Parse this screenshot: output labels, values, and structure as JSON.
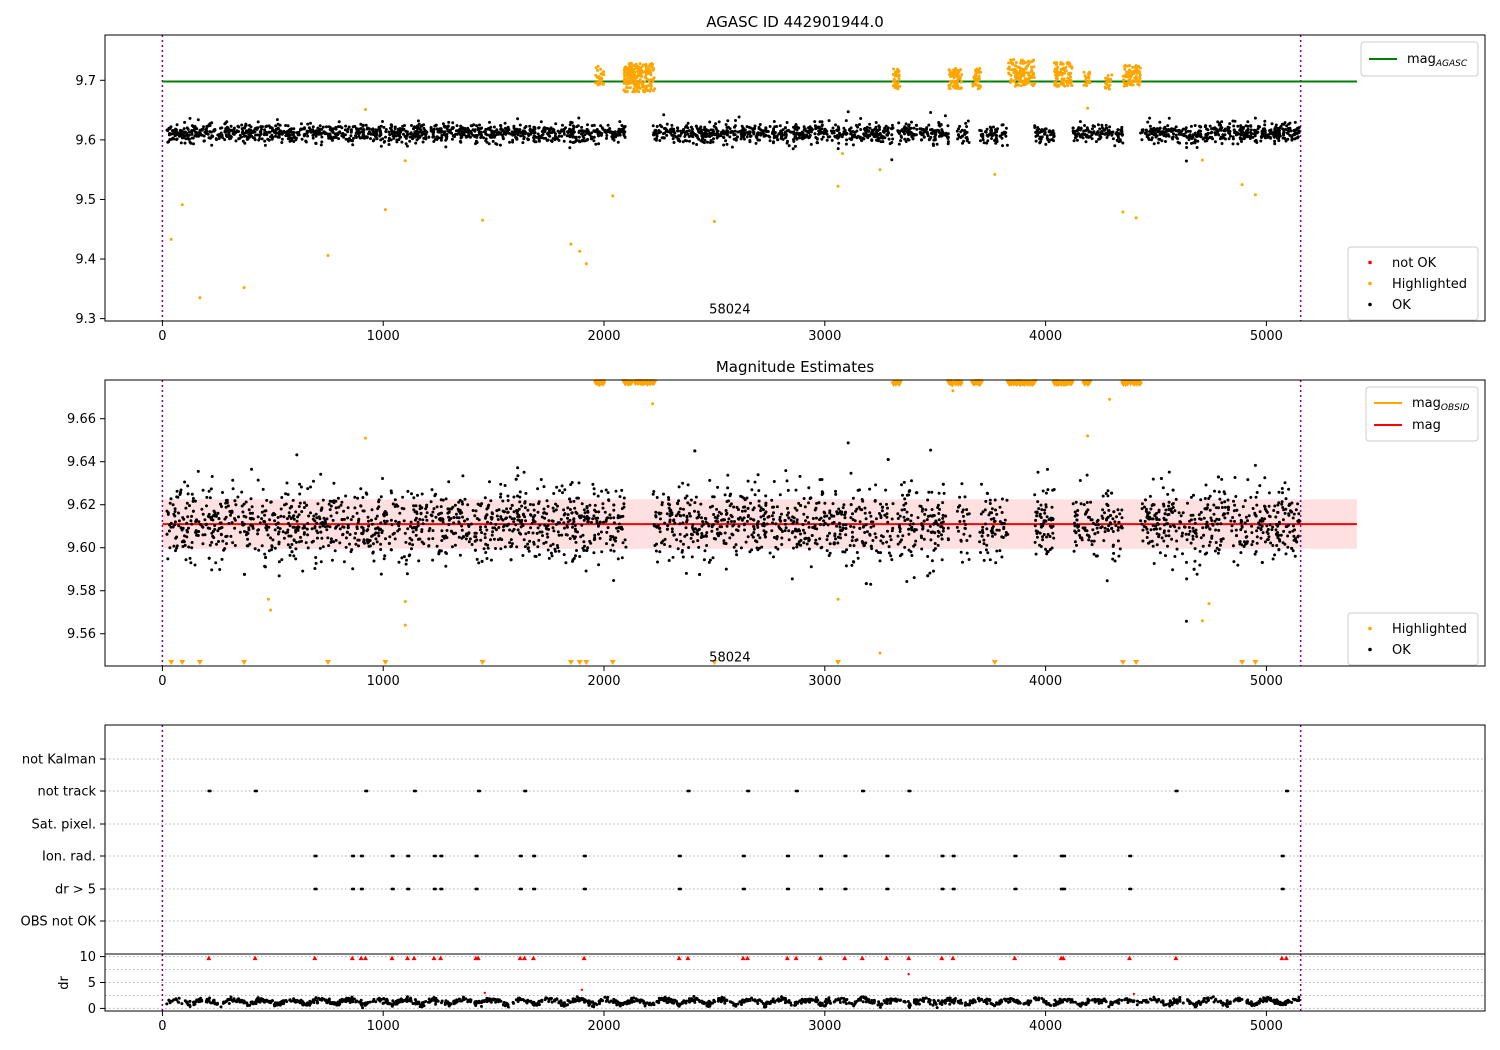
{
  "chart_data": [
    {
      "type": "scatter",
      "title": "AGASC ID 442901944.0",
      "xlim": [
        -260,
        5990
      ],
      "ylim": [
        9.296,
        9.776
      ],
      "x_ticks": [
        0,
        1000,
        2000,
        3000,
        4000,
        5000
      ],
      "y_ticks": [
        9.3,
        9.4,
        9.5,
        9.6,
        9.7
      ],
      "y_tick_format": 1,
      "grid": false,
      "vlines": [
        0,
        5155
      ],
      "annotation": {
        "text": "58024",
        "x": 2570,
        "y": 9.315
      },
      "hline": {
        "name": "mag$_{AGASC}$",
        "label_main": "mag",
        "label_sub": "AGASC",
        "y": 9.698,
        "x": [
          0,
          5410
        ],
        "color": "#008000"
      },
      "legend_top": [
        {
          "kind": "line",
          "label_main": "mag",
          "label_sub": "AGASC",
          "color": "#008000"
        }
      ],
      "legend_bottom": [
        {
          "kind": "marker",
          "label": "not OK",
          "color": "#ff0000"
        },
        {
          "kind": "marker",
          "label": "Highlighted",
          "color": "#ffa500"
        },
        {
          "kind": "marker",
          "label": "OK",
          "color": "#000000"
        }
      ],
      "legend_placement": {
        "top": "top-right",
        "bottom": "bottom-right"
      },
      "series": [
        {
          "name": "OK",
          "color": "#000000",
          "kind": "dense_band",
          "segments": [
            [
              20,
              2100
            ],
            [
              2220,
              3310
            ],
            [
              3330,
              3560
            ],
            [
              3600,
              3660
            ],
            [
              3700,
              3830
            ],
            [
              3950,
              4040
            ],
            [
              4120,
              4350
            ],
            [
              4430,
              5150
            ]
          ],
          "center": 9.611,
          "spread": 0.014,
          "count": 2700
        },
        {
          "name": "Highlighted",
          "color": "#ffa500",
          "kind": "clusters",
          "clusters": [
            {
              "x": [
                1960,
                2000
              ],
              "y": [
                9.69,
                9.724
              ],
              "n": 30
            },
            {
              "x": [
                2090,
                2230
              ],
              "y": [
                9.68,
                9.73
              ],
              "n": 200
            },
            {
              "x": [
                3310,
                3340
              ],
              "y": [
                9.685,
                9.72
              ],
              "n": 40
            },
            {
              "x": [
                3560,
                3620
              ],
              "y": [
                9.685,
                9.72
              ],
              "n": 60
            },
            {
              "x": [
                3670,
                3710
              ],
              "y": [
                9.685,
                9.72
              ],
              "n": 40
            },
            {
              "x": [
                3830,
                3950
              ],
              "y": [
                9.69,
                9.735
              ],
              "n": 130
            },
            {
              "x": [
                4040,
                4120
              ],
              "y": [
                9.69,
                9.73
              ],
              "n": 90
            },
            {
              "x": [
                4170,
                4200
              ],
              "y": [
                9.69,
                9.715
              ],
              "n": 20
            },
            {
              "x": [
                4270,
                4300
              ],
              "y": [
                9.685,
                9.71
              ],
              "n": 20
            },
            {
              "x": [
                4350,
                4430
              ],
              "y": [
                9.69,
                9.725
              ],
              "n": 80
            }
          ],
          "points": [
            [
              40,
              9.433
            ],
            [
              90,
              9.491
            ],
            [
              170,
              9.335
            ],
            [
              370,
              9.352
            ],
            [
              750,
              9.406
            ],
            [
              920,
              9.651
            ],
            [
              1010,
              9.483
            ],
            [
              1100,
              9.565
            ],
            [
              1450,
              9.465
            ],
            [
              1850,
              9.425
            ],
            [
              1890,
              9.413
            ],
            [
              1920,
              9.392
            ],
            [
              2040,
              9.506
            ],
            [
              2500,
              9.463
            ],
            [
              3060,
              9.522
            ],
            [
              3080,
              9.577
            ],
            [
              3250,
              9.55
            ],
            [
              3770,
              9.542
            ],
            [
              4190,
              9.653
            ],
            [
              4350,
              9.479
            ],
            [
              4410,
              9.469
            ],
            [
              4710,
              9.566
            ],
            [
              4890,
              9.525
            ],
            [
              4950,
              9.508
            ]
          ]
        },
        {
          "name": "not OK",
          "color": "#ff0000",
          "kind": "none"
        }
      ]
    },
    {
      "type": "scatter",
      "title": "Magnitude Estimates",
      "xlim": [
        -260,
        5990
      ],
      "ylim": [
        9.545,
        9.678
      ],
      "x_ticks": [
        0,
        1000,
        2000,
        3000,
        4000,
        5000
      ],
      "y_ticks": [
        9.56,
        9.58,
        9.6,
        9.62,
        9.64,
        9.66
      ],
      "y_tick_format": 2,
      "grid": false,
      "vlines": [
        0,
        5155
      ],
      "annotation": {
        "text": "58024",
        "x": 2570,
        "y": 9.549
      },
      "mean_line": {
        "name": "mag",
        "y": 9.611,
        "x": [
          0,
          5410
        ],
        "color": "#ff0000"
      },
      "band": {
        "y": [
          9.5995,
          9.6225
        ],
        "x": [
          0,
          5410
        ],
        "color": "#ff0000",
        "opacity": 0.12
      },
      "legend_top": [
        {
          "kind": "line",
          "label_main": "mag",
          "label_sub": "OBSID",
          "color": "#ffa500"
        },
        {
          "kind": "line",
          "label_main": "mag",
          "label_sub": "",
          "color": "#ff0000"
        }
      ],
      "legend_bottom": [
        {
          "kind": "marker",
          "label": "Highlighted",
          "color": "#ffa500"
        },
        {
          "kind": "marker",
          "label": "OK",
          "color": "#000000"
        }
      ],
      "legend_placement": {
        "top": "top-right",
        "bottom": "bottom-right"
      },
      "series": [
        {
          "name": "OK",
          "color": "#000000",
          "kind": "dense_band",
          "segments": [
            [
              20,
              2100
            ],
            [
              2220,
              3310
            ],
            [
              3330,
              3560
            ],
            [
              3600,
              3660
            ],
            [
              3700,
              3830
            ],
            [
              3950,
              4040
            ],
            [
              4120,
              4350
            ],
            [
              4430,
              5150
            ]
          ],
          "center": 9.611,
          "spread": 0.011,
          "count": 2700
        },
        {
          "name": "Highlighted",
          "color": "#ffa500",
          "kind": "top_clusters",
          "y": 9.677,
          "clusters": [
            [
              1960,
              2000
            ],
            [
              2090,
              2230
            ],
            [
              3310,
              3340
            ],
            [
              3560,
              3620
            ],
            [
              3670,
              3710
            ],
            [
              3830,
              3950
            ],
            [
              4040,
              4120
            ],
            [
              4170,
              4200
            ],
            [
              4350,
              4430
            ]
          ],
          "points": [
            [
              480,
              9.576
            ],
            [
              490,
              9.571
            ],
            [
              920,
              9.651
            ],
            [
              1100,
              9.575
            ],
            [
              1100,
              9.564
            ],
            [
              2220,
              9.667
            ],
            [
              3060,
              9.576
            ],
            [
              3250,
              9.551
            ],
            [
              3580,
              9.673
            ],
            [
              4190,
              9.652
            ],
            [
              4290,
              9.669
            ],
            [
              4710,
              9.566
            ],
            [
              4740,
              9.574
            ]
          ],
          "below_markers": [
            40,
            90,
            170,
            370,
            750,
            1010,
            1450,
            1850,
            1890,
            1920,
            2040,
            2500,
            3060,
            3770,
            4350,
            4410,
            4890,
            4950
          ]
        }
      ]
    },
    {
      "type": "scatter",
      "title": "",
      "xlim": [
        -260,
        5990
      ],
      "x_ticks": [
        0,
        1000,
        2000,
        3000,
        4000,
        5000
      ],
      "vlines": [
        0,
        5155
      ],
      "categories": [
        "not Kalman",
        "not track",
        "Sat. pixel.",
        "Ion. rad.",
        "dr > 5",
        "OBS not OK"
      ],
      "flags": {
        "not Kalman": [],
        "not track": [
          210,
          420,
          920,
          1140,
          1430,
          1640,
          2380,
          2650,
          2870,
          3170,
          3380,
          4590,
          5090
        ],
        "Sat. pixel.": [],
        "Ion. rad.": [
          690,
          860,
          900,
          1040,
          1110,
          1230,
          1260,
          1420,
          1620,
          1680,
          1910,
          2340,
          2630,
          2830,
          2980,
          3090,
          3280,
          3530,
          3580,
          3860,
          4070,
          4080,
          4380,
          5070
        ],
        "dr > 5": [
          690,
          860,
          900,
          1040,
          1110,
          1230,
          1260,
          1420,
          1620,
          1680,
          1910,
          2340,
          2630,
          2830,
          2980,
          3090,
          3280,
          3530,
          3580,
          3860,
          4070,
          4080,
          4380,
          5070
        ],
        "OBS not OK": []
      }
    },
    {
      "type": "scatter",
      "title": "",
      "ylabel": "dr",
      "xlim": [
        -260,
        5990
      ],
      "ylim": [
        -0.5,
        10.5
      ],
      "x_ticks": [
        0,
        1000,
        2000,
        3000,
        4000,
        5000
      ],
      "y_ticks": [
        0,
        5,
        10
      ],
      "vlines": [
        0,
        5155
      ],
      "series": [
        {
          "name": "dr",
          "color": "#000000",
          "kind": "dr_band",
          "x": [
            20,
            5150
          ],
          "center": 1.1,
          "spread": 0.6,
          "count": 1600
        },
        {
          "name": "dr clipped",
          "color": "#ff0000",
          "kind": "clipped",
          "y": 9.7,
          "x": [
            210,
            420,
            690,
            860,
            900,
            920,
            1040,
            1110,
            1140,
            1230,
            1260,
            1420,
            1430,
            1620,
            1640,
            1680,
            1910,
            2340,
            2380,
            2630,
            2650,
            2830,
            2870,
            2980,
            3090,
            3170,
            3280,
            3380,
            3530,
            3580,
            3860,
            4070,
            4080,
            4380,
            4590,
            5070,
            5090
          ]
        },
        {
          "name": "dr outliers",
          "color": "#ff0000",
          "kind": "points",
          "points": [
            [
              3380,
              6.6
            ],
            [
              1460,
              3.0
            ],
            [
              1900,
              3.6
            ],
            [
              4400,
              2.8
            ]
          ]
        }
      ]
    }
  ]
}
